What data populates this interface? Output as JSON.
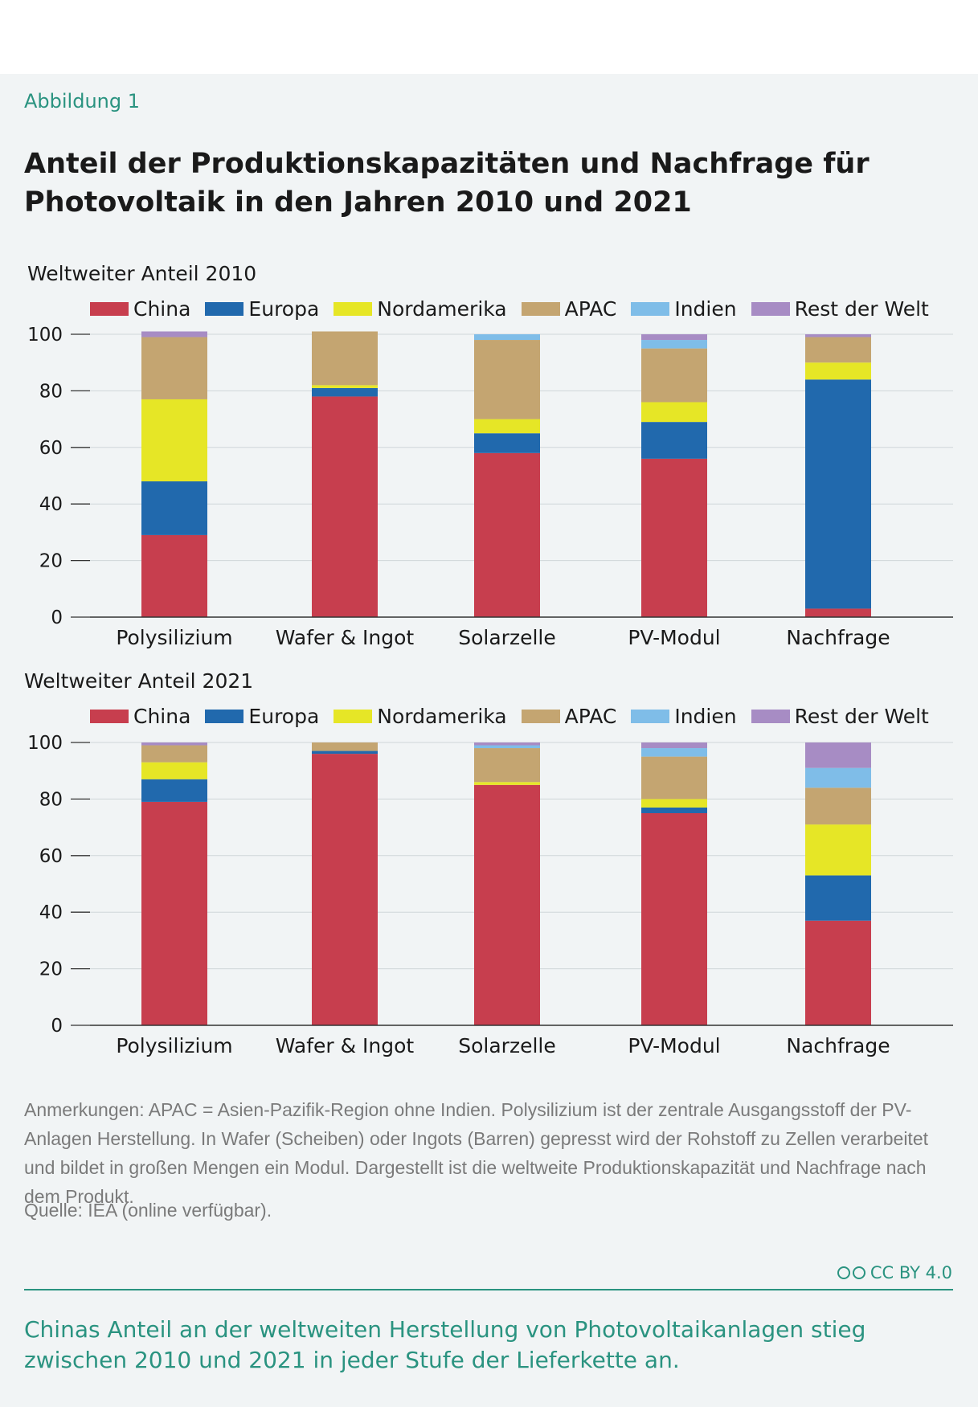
{
  "figure": {
    "label": "Abbildung 1",
    "title": "Anteil der Produktionskapazitäten und Nachfrage für Photovoltaik in den Jahren 2010 und 2021"
  },
  "colors": {
    "China": "#c73e4e",
    "Europa": "#2169ad",
    "Nordamerika": "#e6e626",
    "APAC": "#c4a571",
    "Indien": "#7fbde8",
    "Rest der Welt": "#a78cc4"
  },
  "chart_data": [
    {
      "type": "bar",
      "stacked": true,
      "title": "Weltweiter Anteil 2010",
      "categories": [
        "Polysilizium",
        "Wafer & Ingot",
        "Solarzelle",
        "PV-Modul",
        "Nachfrage"
      ],
      "ylim": [
        0,
        100
      ],
      "yticks": [
        "0",
        "20",
        "40",
        "60",
        "80",
        "100"
      ],
      "grid": true,
      "legend": "top",
      "series": [
        {
          "name": "China",
          "values": [
            29,
            78,
            58,
            56,
            3
          ]
        },
        {
          "name": "Europa",
          "values": [
            19,
            3,
            7,
            13,
            81
          ]
        },
        {
          "name": "Nordamerika",
          "values": [
            29,
            1,
            5,
            7,
            6
          ]
        },
        {
          "name": "APAC",
          "values": [
            22,
            19,
            28,
            19,
            9
          ]
        },
        {
          "name": "Indien",
          "values": [
            0,
            0,
            2,
            3,
            0
          ]
        },
        {
          "name": "Rest der Welt",
          "values": [
            2,
            0,
            0,
            2,
            1
          ]
        }
      ]
    },
    {
      "type": "bar",
      "stacked": true,
      "title": "Weltweiter Anteil 2021",
      "categories": [
        "Polysilizium",
        "Wafer & Ingot",
        "Solarzelle",
        "PV-Modul",
        "Nachfrage"
      ],
      "ylim": [
        0,
        100
      ],
      "yticks": [
        "0",
        "20",
        "40",
        "60",
        "80",
        "100"
      ],
      "grid": true,
      "legend": "top",
      "series": [
        {
          "name": "China",
          "values": [
            79,
            96,
            85,
            75,
            37
          ]
        },
        {
          "name": "Europa",
          "values": [
            8,
            1,
            0,
            2,
            16
          ]
        },
        {
          "name": "Nordamerika",
          "values": [
            6,
            0,
            1,
            3,
            18
          ]
        },
        {
          "name": "APAC",
          "values": [
            6,
            3,
            12,
            15,
            13
          ]
        },
        {
          "name": "Indien",
          "values": [
            0,
            0,
            1,
            3,
            7
          ]
        },
        {
          "name": "Rest der Welt",
          "values": [
            1,
            0,
            1,
            2,
            9
          ]
        }
      ]
    }
  ],
  "notes": "Anmerkungen: APAC = Asien-Pazifik-Region ohne Indien. Polysilizium ist der zentrale Ausgangsstoff der PV-Anlagen Herstellung. In Wafer (Scheiben) oder Ingots (Barren) gepresst wird der Rohstoff zu Zellen verarbeitet und bildet in großen Mengen ein Modul. Dargestellt ist die weltweite Produktionskapazität und Nachfrage nach dem Produkt.",
  "source": "Quelle: IEA (online verfügbar).",
  "license": "CC BY 4.0",
  "takeaway": "Chinas Anteil an der weltweiten Herstellung von Photovoltaikanlagen stieg zwischen 2010 und 2021 in jeder Stufe der Lieferkette an."
}
